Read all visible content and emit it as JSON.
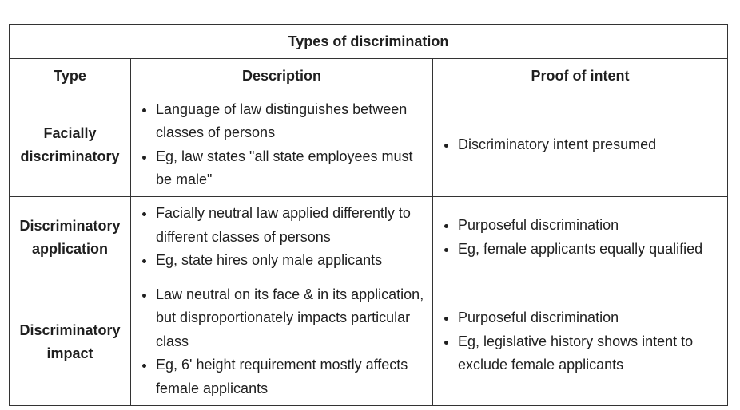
{
  "table": {
    "caption": "Types of discrimination",
    "headers": [
      "Type",
      "Description",
      "Proof of intent"
    ],
    "rows": [
      {
        "type": "Facially discriminatory",
        "description": [
          "Language of law distinguishes between classes of persons",
          "Eg, law states \"all state employees must be male\""
        ],
        "proof": [
          "Discriminatory intent presumed"
        ]
      },
      {
        "type": "Discriminatory application",
        "description": [
          "Facially neutral law applied differently to different classes of persons",
          "Eg, state hires only male applicants"
        ],
        "proof": [
          "Purposeful discrimination",
          "Eg, female applicants equally qualified"
        ]
      },
      {
        "type": "Discriminatory impact",
        "description": [
          "Law neutral on its face & in its application, but disproportionately impacts particular class",
          "Eg, 6' height requirement mostly affects female applicants"
        ],
        "proof": [
          "Purposeful discrimination",
          "Eg, legislative history shows intent to exclude female applicants"
        ]
      }
    ]
  }
}
